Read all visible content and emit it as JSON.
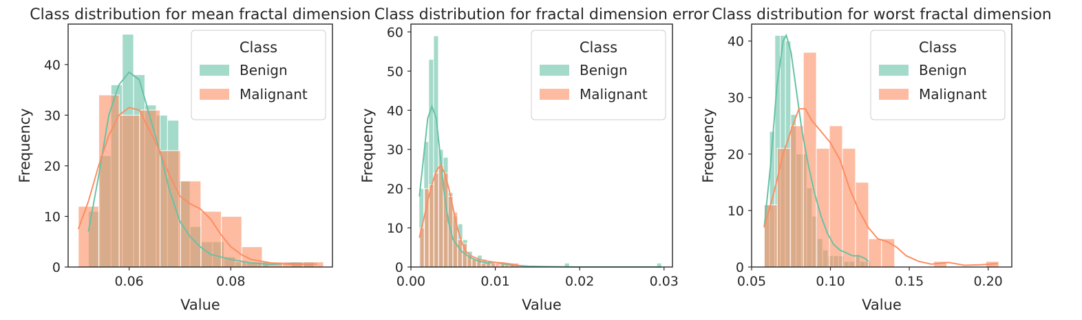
{
  "chart_data": [
    {
      "type": "histogram",
      "title": "Class distribution for mean fractal dimension",
      "xlabel": "Value",
      "ylabel": "Frequency",
      "xlim": [
        0.048,
        0.1
      ],
      "ylim": [
        0,
        48
      ],
      "xticks": [
        0.06,
        0.08
      ],
      "xtick_labels": [
        "0.06",
        "0.08"
      ],
      "yticks": [
        0,
        10,
        20,
        30,
        40
      ],
      "ytick_labels": [
        "0",
        "10",
        "20",
        "30",
        "40"
      ],
      "legend": {
        "title": "Class",
        "position": "top-right"
      },
      "grid": false,
      "series": [
        {
          "name": "Benign",
          "color": "#66c2a5",
          "bin_start": 0.052,
          "bin_width": 0.00222,
          "counts": [
            11,
            22,
            36,
            46,
            38,
            32,
            30,
            29,
            17,
            8,
            5,
            5,
            2,
            1,
            1,
            1,
            0,
            0,
            1,
            1
          ],
          "kde": [
            [
              0.052,
              7
            ],
            [
              0.054,
              18
            ],
            [
              0.056,
              30
            ],
            [
              0.058,
              36
            ],
            [
              0.06,
              38.5
            ],
            [
              0.062,
              37
            ],
            [
              0.064,
              30
            ],
            [
              0.066,
              23
            ],
            [
              0.068,
              15
            ],
            [
              0.07,
              9
            ],
            [
              0.072,
              6
            ],
            [
              0.074,
              4
            ],
            [
              0.076,
              2.5
            ],
            [
              0.078,
              2
            ],
            [
              0.08,
              1.5
            ],
            [
              0.084,
              0.8
            ],
            [
              0.088,
              0.5
            ],
            [
              0.092,
              0.7
            ],
            [
              0.096,
              0.5
            ]
          ]
        },
        {
          "name": "Malignant",
          "color": "#fc8d62",
          "bin_start": 0.05,
          "bin_width": 0.00402,
          "counts": [
            12,
            34,
            30,
            31,
            23,
            17,
            11,
            10,
            4,
            1,
            1,
            1
          ],
          "kde": [
            [
              0.05,
              7.5
            ],
            [
              0.052,
              13
            ],
            [
              0.054,
              20
            ],
            [
              0.056,
              26
            ],
            [
              0.058,
              30
            ],
            [
              0.06,
              31.5
            ],
            [
              0.062,
              31
            ],
            [
              0.064,
              27
            ],
            [
              0.066,
              23
            ],
            [
              0.068,
              18
            ],
            [
              0.07,
              14
            ],
            [
              0.072,
              12.5
            ],
            [
              0.074,
              11.5
            ],
            [
              0.076,
              9.5
            ],
            [
              0.078,
              6.5
            ],
            [
              0.08,
              4
            ],
            [
              0.082,
              2.5
            ],
            [
              0.084,
              1.5
            ],
            [
              0.088,
              0.8
            ],
            [
              0.092,
              0.5
            ],
            [
              0.097,
              0.6
            ]
          ]
        }
      ]
    },
    {
      "type": "histogram",
      "title": "Class distribution for fractal dimension error",
      "xlabel": "Value",
      "ylabel": "Frequency",
      "xlim": [
        0,
        0.031
      ],
      "ylim": [
        0,
        62
      ],
      "xticks": [
        0,
        0.01,
        0.02,
        0.03
      ],
      "xtick_labels": [
        "0.00",
        "0.01",
        "0.02",
        "0.03"
      ],
      "yticks": [
        0,
        10,
        20,
        30,
        40,
        50,
        60
      ],
      "ytick_labels": [
        "0",
        "10",
        "20",
        "30",
        "40",
        "50",
        "60"
      ],
      "legend": {
        "title": "Class",
        "position": "top-right"
      },
      "grid": false,
      "series": [
        {
          "name": "Benign",
          "color": "#66c2a5",
          "bin_start": 0.00096,
          "bin_width": 0.000575,
          "counts": [
            20,
            32,
            53,
            59,
            30,
            28,
            19,
            13,
            11,
            7,
            4,
            2,
            3,
            2,
            1,
            1,
            0,
            1,
            0,
            1,
            0,
            0,
            0,
            0,
            0,
            0,
            0,
            0,
            0,
            0,
            1,
            0,
            0,
            0,
            0,
            0,
            0,
            0,
            0,
            0,
            0,
            0,
            0,
            0,
            0,
            0,
            0,
            0,
            0,
            1
          ],
          "kde": [
            [
              0.001,
              18
            ],
            [
              0.0015,
              28
            ],
            [
              0.002,
              38
            ],
            [
              0.0025,
              41
            ],
            [
              0.003,
              38
            ],
            [
              0.0035,
              28
            ],
            [
              0.004,
              18
            ],
            [
              0.0045,
              11
            ],
            [
              0.005,
              7
            ],
            [
              0.006,
              4
            ],
            [
              0.007,
              2.5
            ],
            [
              0.008,
              1.5
            ],
            [
              0.009,
              1
            ],
            [
              0.01,
              1.2
            ],
            [
              0.011,
              0.8
            ],
            [
              0.012,
              0.5
            ],
            [
              0.014,
              0.2
            ],
            [
              0.016,
              0.1
            ],
            [
              0.02,
              0
            ],
            [
              0.025,
              0
            ],
            [
              0.0297,
              0
            ]
          ]
        },
        {
          "name": "Malignant",
          "color": "#fc8d62",
          "bin_start": 0.00105,
          "bin_width": 0.00056,
          "counts": [
            10,
            20,
            21,
            24,
            26,
            24,
            18,
            14,
            7,
            6,
            3,
            2,
            2,
            1,
            1,
            1,
            1,
            1,
            1,
            1,
            1
          ],
          "kde": [
            [
              0.001,
              7.5
            ],
            [
              0.0015,
              12
            ],
            [
              0.002,
              17
            ],
            [
              0.0025,
              21
            ],
            [
              0.003,
              24.5
            ],
            [
              0.0035,
              26
            ],
            [
              0.004,
              24
            ],
            [
              0.0045,
              20
            ],
            [
              0.005,
              15
            ],
            [
              0.0055,
              10
            ],
            [
              0.006,
              6.5
            ],
            [
              0.0065,
              4
            ],
            [
              0.007,
              3
            ],
            [
              0.008,
              2
            ],
            [
              0.009,
              1.5
            ],
            [
              0.01,
              1.2
            ],
            [
              0.011,
              1
            ],
            [
              0.012,
              0.7
            ],
            [
              0.013,
              0.3
            ]
          ]
        }
      ]
    },
    {
      "type": "histogram",
      "title": "Class distribution for worst fractal dimension",
      "xlabel": "Value",
      "ylabel": "Frequency",
      "xlim": [
        0.05,
        0.215
      ],
      "ylim": [
        0,
        43
      ],
      "xticks": [
        0.05,
        0.1,
        0.15,
        0.2
      ],
      "xtick_labels": [
        "0.05",
        "0.10",
        "0.15",
        "0.20"
      ],
      "yticks": [
        0,
        10,
        20,
        30,
        40
      ],
      "ytick_labels": [
        "0",
        "10",
        "20",
        "30",
        "40"
      ],
      "legend": {
        "title": "Class",
        "position": "top-right"
      },
      "grid": false,
      "series": [
        {
          "name": "Benign",
          "color": "#66c2a5",
          "bin_start": 0.058,
          "bin_width": 0.00337,
          "counts": [
            11,
            24,
            41,
            41,
            40,
            27,
            20,
            20,
            14,
            9,
            5,
            3,
            2,
            2,
            2,
            1,
            1,
            2,
            1,
            1
          ],
          "kde": [
            [
              0.058,
              7
            ],
            [
              0.062,
              18
            ],
            [
              0.066,
              32
            ],
            [
              0.07,
              40
            ],
            [
              0.072,
              41
            ],
            [
              0.075,
              38
            ],
            [
              0.078,
              32
            ],
            [
              0.082,
              24
            ],
            [
              0.086,
              18
            ],
            [
              0.09,
              13
            ],
            [
              0.094,
              9
            ],
            [
              0.098,
              6
            ],
            [
              0.102,
              4
            ],
            [
              0.106,
              3
            ],
            [
              0.11,
              2.5
            ],
            [
              0.114,
              2
            ],
            [
              0.118,
              2
            ],
            [
              0.122,
              1.5
            ],
            [
              0.124,
              1
            ]
          ]
        },
        {
          "name": "Malignant",
          "color": "#fc8d62",
          "bin_start": 0.058,
          "bin_width": 0.00827,
          "counts": [
            11,
            21,
            25,
            38,
            21,
            25,
            21,
            15,
            5,
            5,
            0,
            0,
            0,
            1,
            0,
            0,
            0,
            1
          ],
          "kde": [
            [
              0.058,
              7
            ],
            [
              0.064,
              13
            ],
            [
              0.07,
              20
            ],
            [
              0.076,
              25
            ],
            [
              0.08,
              28
            ],
            [
              0.084,
              28
            ],
            [
              0.088,
              26
            ],
            [
              0.094,
              24
            ],
            [
              0.1,
              22
            ],
            [
              0.106,
              19
            ],
            [
              0.112,
              14
            ],
            [
              0.118,
              10
            ],
            [
              0.124,
              7
            ],
            [
              0.13,
              5
            ],
            [
              0.136,
              4.5
            ],
            [
              0.142,
              3.5
            ],
            [
              0.148,
              2
            ],
            [
              0.156,
              1
            ],
            [
              0.164,
              0.5
            ],
            [
              0.175,
              0.8
            ],
            [
              0.185,
              0.3
            ],
            [
              0.195,
              0.4
            ],
            [
              0.206,
              0.6
            ]
          ]
        }
      ]
    }
  ]
}
